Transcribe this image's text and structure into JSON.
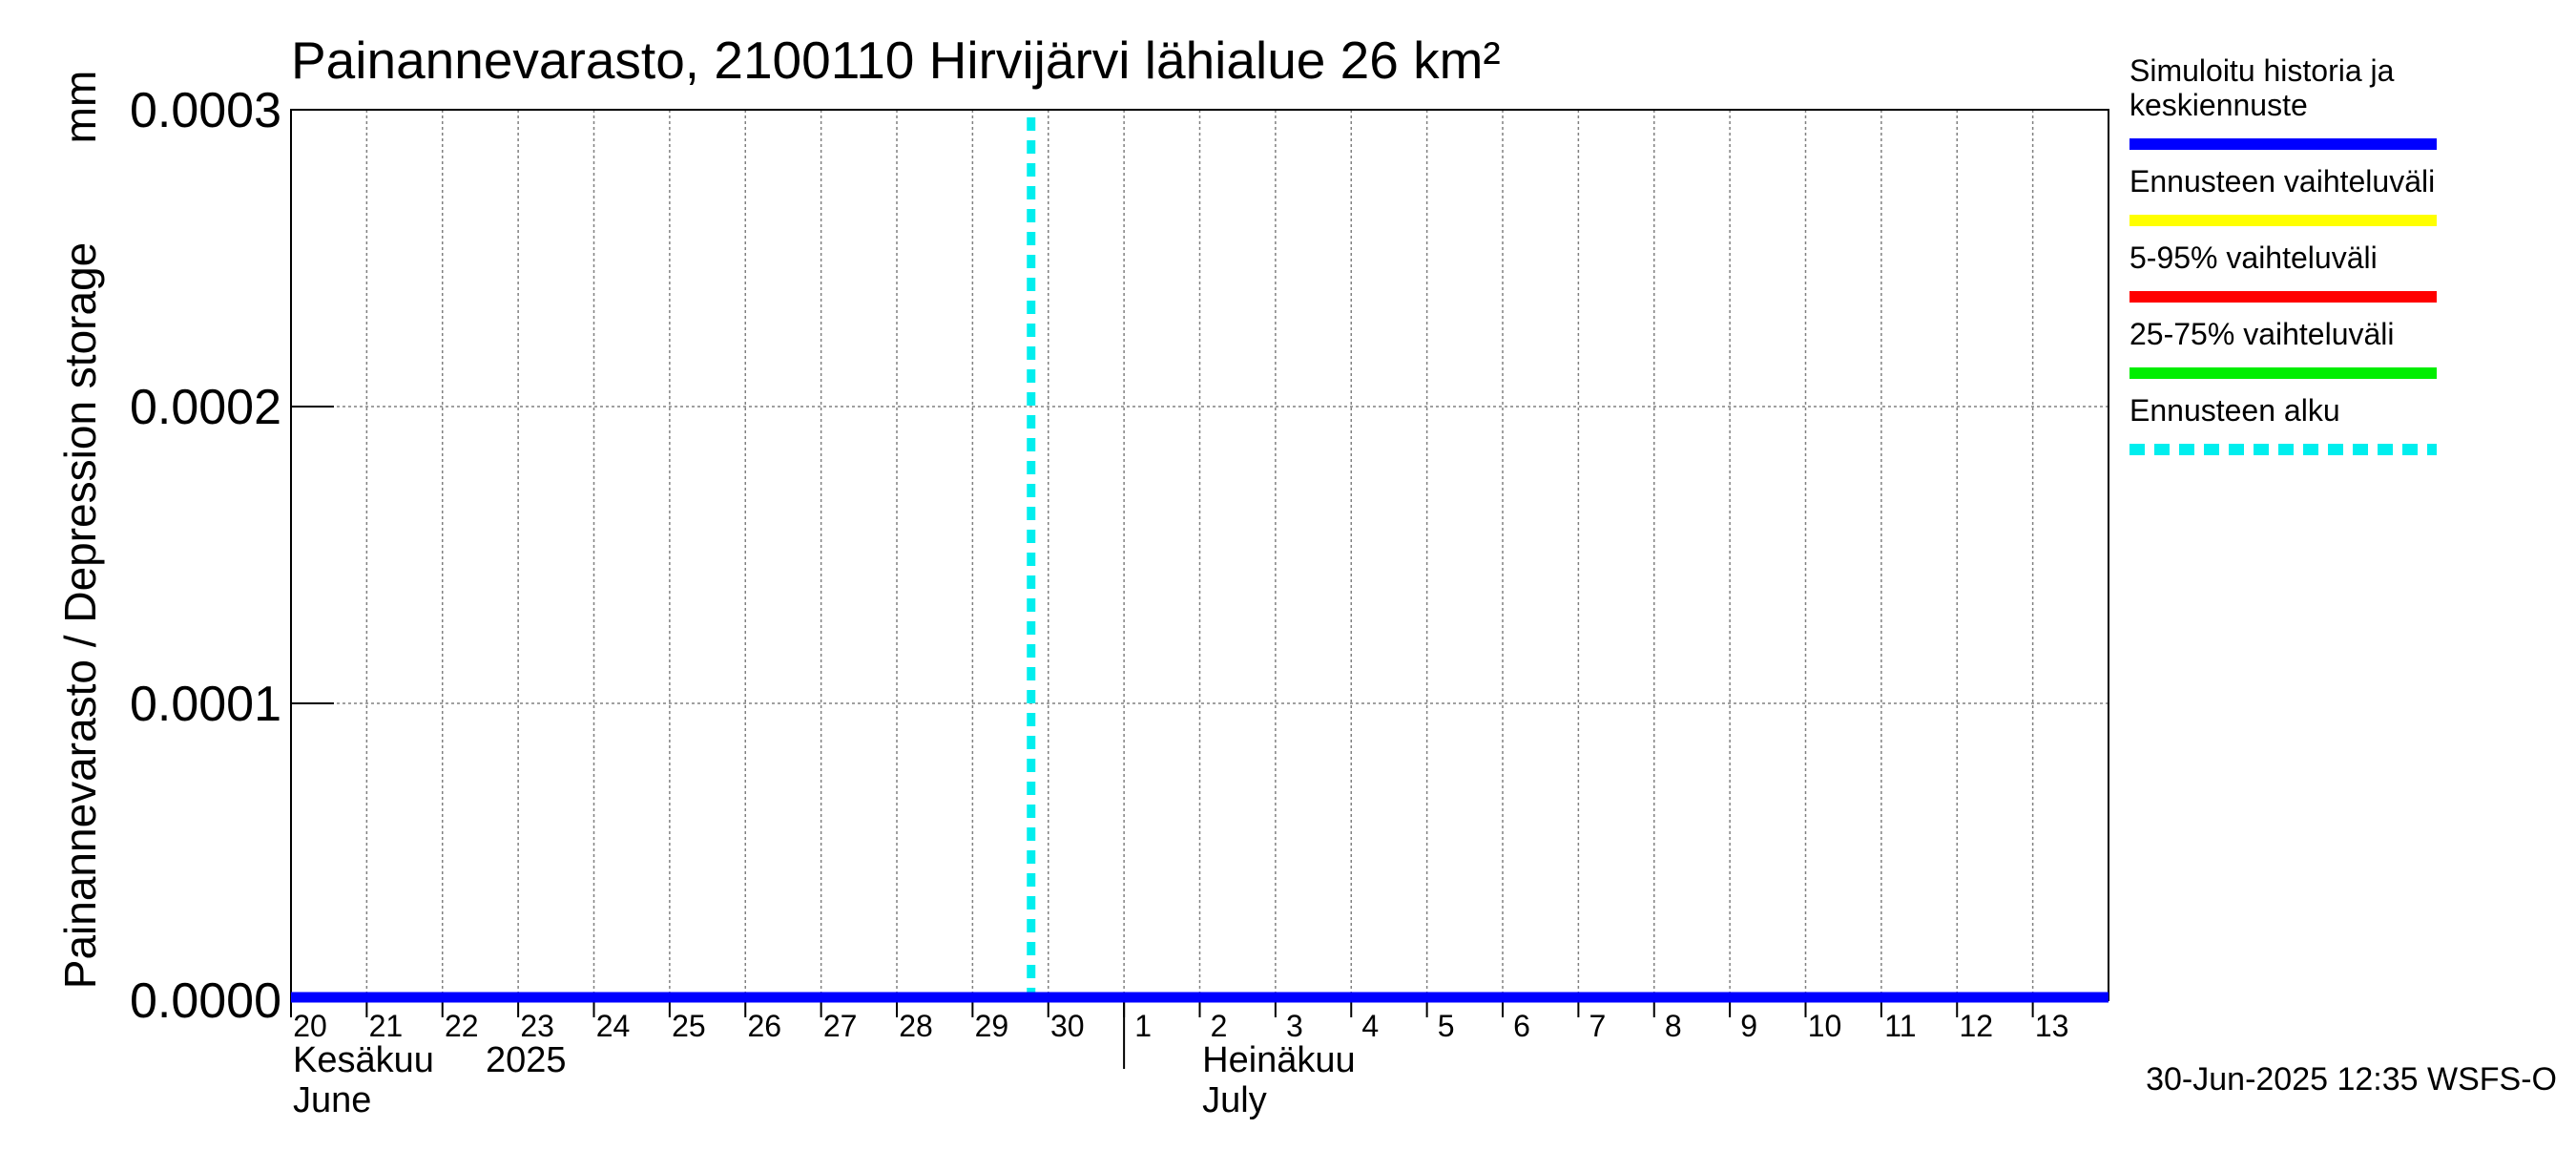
{
  "chart_data": {
    "type": "line",
    "title": "Painannevarasto, 2100110 Hirvijärvi lähialue 26 km²",
    "ylabel": "Painannevarasto / Depression storage",
    "yunit": "mm",
    "ylim": [
      0,
      0.0003
    ],
    "yticks": [
      {
        "value": 0,
        "label": "0.0000"
      },
      {
        "value": 0.0001,
        "label": "0.0001"
      },
      {
        "value": 0.0002,
        "label": "0.0002"
      },
      {
        "value": 0.0003,
        "label": "0.0003"
      }
    ],
    "xlim": [
      "2025-06-20",
      "2025-07-14"
    ],
    "xticks": [
      {
        "date": "2025-06-20",
        "label": "20"
      },
      {
        "date": "2025-06-21",
        "label": "21"
      },
      {
        "date": "2025-06-22",
        "label": "22"
      },
      {
        "date": "2025-06-23",
        "label": "23"
      },
      {
        "date": "2025-06-24",
        "label": "24"
      },
      {
        "date": "2025-06-25",
        "label": "25"
      },
      {
        "date": "2025-06-26",
        "label": "26"
      },
      {
        "date": "2025-06-27",
        "label": "27"
      },
      {
        "date": "2025-06-28",
        "label": "28"
      },
      {
        "date": "2025-06-29",
        "label": "29"
      },
      {
        "date": "2025-06-30",
        "label": "30"
      },
      {
        "date": "2025-07-01",
        "label": "1"
      },
      {
        "date": "2025-07-02",
        "label": "2"
      },
      {
        "date": "2025-07-03",
        "label": "3"
      },
      {
        "date": "2025-07-04",
        "label": "4"
      },
      {
        "date": "2025-07-05",
        "label": "5"
      },
      {
        "date": "2025-07-06",
        "label": "6"
      },
      {
        "date": "2025-07-07",
        "label": "7"
      },
      {
        "date": "2025-07-08",
        "label": "8"
      },
      {
        "date": "2025-07-09",
        "label": "9"
      },
      {
        "date": "2025-07-10",
        "label": "10"
      },
      {
        "date": "2025-07-11",
        "label": "11"
      },
      {
        "date": "2025-07-12",
        "label": "12"
      },
      {
        "date": "2025-07-13",
        "label": "13"
      }
    ],
    "month_labels": [
      {
        "date": "2025-06-20",
        "fi": "Kesäkuu",
        "year": "2025",
        "en": "June"
      },
      {
        "date": "2025-07-01",
        "fi": "Heinäkuu",
        "year": "",
        "en": "July"
      }
    ],
    "series": [
      {
        "name": "Simuloitu historia ja keskiennuste",
        "color": "#0000ff",
        "style": "solid",
        "points": [
          {
            "x": "2025-06-20",
            "y": 0
          },
          {
            "x": "2025-07-14",
            "y": 0
          }
        ]
      }
    ],
    "forecast_start": {
      "date": "2025-06-30",
      "label": "Ennusteen alku",
      "color": "#00eeee"
    },
    "legend": {
      "placement": "right",
      "entries": [
        {
          "lines": [
            "Simuloitu historia ja",
            "keskiennuste"
          ],
          "color": "#0000ff",
          "style": "solid"
        },
        {
          "lines": [
            "Ennusteen vaihteluväli"
          ],
          "color": "#ffff00",
          "style": "solid"
        },
        {
          "lines": [
            "5-95% vaihteluväli"
          ],
          "color": "#ff0000",
          "style": "solid"
        },
        {
          "lines": [
            "25-75% vaihteluväli"
          ],
          "color": "#00ee00",
          "style": "solid"
        },
        {
          "lines": [
            "Ennusteen alku"
          ],
          "color": "#00eeee",
          "style": "dashed"
        }
      ]
    },
    "grid": true,
    "footer": "30-Jun-2025 12:35 WSFS-O"
  }
}
